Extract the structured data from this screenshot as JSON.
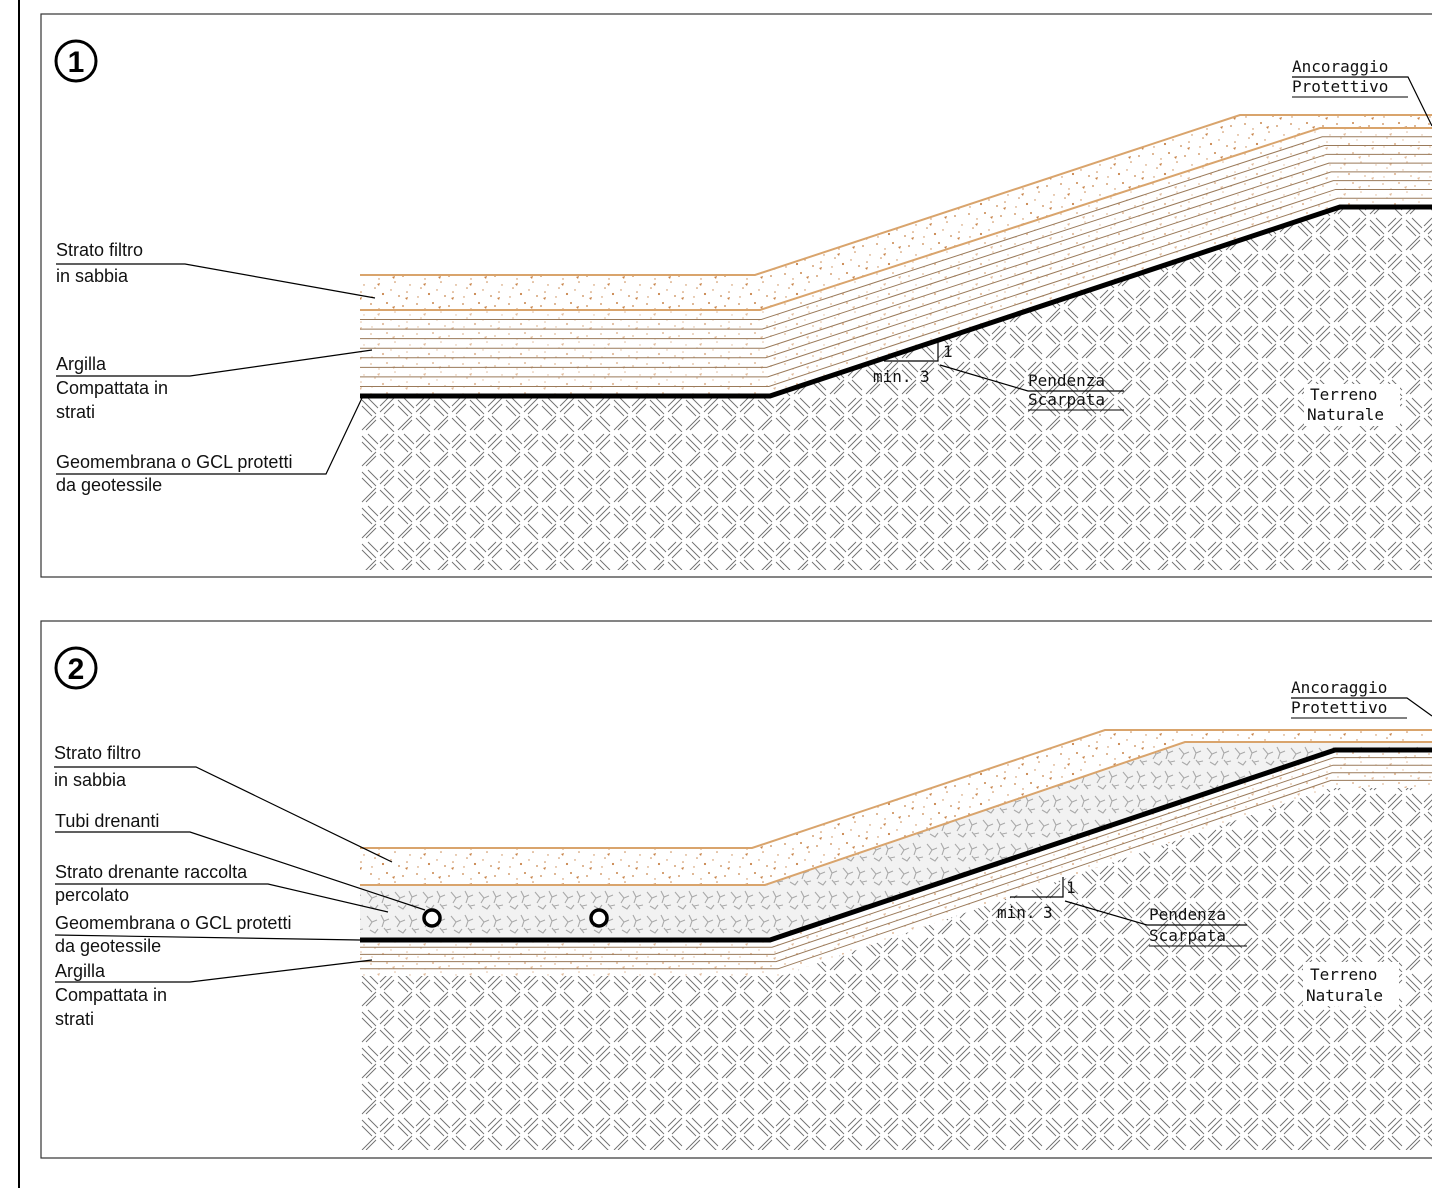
{
  "colors": {
    "sand": "#d9a46c",
    "sand_dots": "#c8844a",
    "clay_line": "#9a7a5a",
    "geomembrane": "#000000",
    "drainage": "#b9b9b9",
    "soil_hatch": "#6e6e6e"
  },
  "panel1": {
    "number": "1",
    "labels": {
      "strato_filtro_1": "Strato filtro",
      "strato_filtro_2": "in sabbia",
      "argilla_1": "Argilla",
      "argilla_2": "Compattata in",
      "argilla_3": "strati",
      "geomembrana_1": "Geomembrana o GCL protetti",
      "geomembrana_2": "da geotessile",
      "ancoraggio_1": "Ancoraggio",
      "ancoraggio_2": "Protettivo",
      "pendenza_1": "Pendenza",
      "pendenza_2": "Scarpata",
      "terreno_1": "Terreno",
      "terreno_2": "Naturale",
      "slope_min": "min.",
      "slope_run": "3",
      "slope_rise": "1"
    }
  },
  "panel2": {
    "number": "2",
    "labels": {
      "strato_filtro_1": "Strato filtro",
      "strato_filtro_2": "in sabbia",
      "tubi": "Tubi drenanti",
      "drenante_1": "Strato drenante raccolta",
      "drenante_2": "percolato",
      "geomembrana_1": "Geomembrana o GCL protetti",
      "geomembrana_2": "da geotessile",
      "argilla_1": "Argilla",
      "argilla_2": "Compattata in",
      "argilla_3": "strati",
      "ancoraggio_1": "Ancoraggio",
      "ancoraggio_2": "Protettivo",
      "pendenza_1": "Pendenza",
      "pendenza_2": "Scarpata",
      "terreno_1": "Terreno",
      "terreno_2": "Naturale",
      "slope_min": "min.",
      "slope_run": "3",
      "slope_rise": "1"
    }
  }
}
